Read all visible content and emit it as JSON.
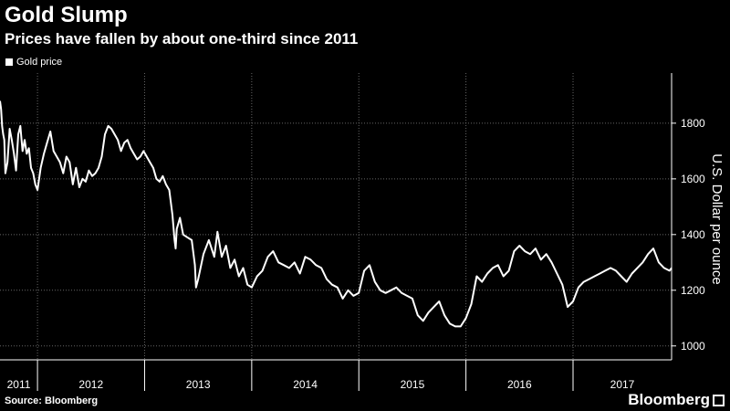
{
  "chart_data": {
    "type": "line",
    "title": "Gold Slump",
    "subtitle": "Prices have fallen by about one-third since 2011",
    "ylabel": "U.S. Dollar per ounce",
    "xlabel": "",
    "legend": {
      "position": "top-left",
      "entries": [
        "Gold price"
      ]
    },
    "ylim": [
      950,
      1980
    ],
    "yticks": [
      1000,
      1200,
      1400,
      1600,
      1800
    ],
    "grid": true,
    "x_categories": [
      "2011",
      "2012",
      "2013",
      "2014",
      "2015",
      "2016",
      "2017"
    ],
    "x_range": [
      2011.65,
      2017.92
    ],
    "series": [
      {
        "name": "Gold price",
        "x": [
          2011.65,
          2011.66,
          2011.67,
          2011.68,
          2011.69,
          2011.7,
          2011.72,
          2011.74,
          2011.76,
          2011.78,
          2011.8,
          2011.82,
          2011.84,
          2011.86,
          2011.88,
          2011.9,
          2011.92,
          2011.94,
          2011.96,
          2011.98,
          2012.0,
          2012.03,
          2012.06,
          2012.09,
          2012.12,
          2012.15,
          2012.18,
          2012.21,
          2012.24,
          2012.27,
          2012.3,
          2012.33,
          2012.36,
          2012.39,
          2012.42,
          2012.45,
          2012.48,
          2012.51,
          2012.54,
          2012.57,
          2012.6,
          2012.63,
          2012.66,
          2012.69,
          2012.72,
          2012.75,
          2012.78,
          2012.81,
          2012.84,
          2012.87,
          2012.9,
          2012.93,
          2012.96,
          2012.99,
          2013.02,
          2013.05,
          2013.08,
          2013.11,
          2013.14,
          2013.17,
          2013.2,
          2013.23,
          2013.26,
          2013.28,
          2013.29,
          2013.3,
          2013.33,
          2013.36,
          2013.4,
          2013.44,
          2013.47,
          2013.48,
          2013.5,
          2013.55,
          2013.6,
          2013.65,
          2013.68,
          2013.72,
          2013.76,
          2013.8,
          2013.84,
          2013.88,
          2013.92,
          2013.96,
          2014.0,
          2014.05,
          2014.1,
          2014.15,
          2014.2,
          2014.25,
          2014.3,
          2014.35,
          2014.4,
          2014.45,
          2014.5,
          2014.55,
          2014.6,
          2014.65,
          2014.7,
          2014.75,
          2014.8,
          2014.85,
          2014.9,
          2014.95,
          2015.0,
          2015.05,
          2015.1,
          2015.15,
          2015.2,
          2015.25,
          2015.3,
          2015.35,
          2015.4,
          2015.45,
          2015.5,
          2015.55,
          2015.6,
          2015.65,
          2015.7,
          2015.75,
          2015.8,
          2015.85,
          2015.9,
          2015.95,
          2016.0,
          2016.05,
          2016.1,
          2016.15,
          2016.2,
          2016.25,
          2016.3,
          2016.35,
          2016.4,
          2016.45,
          2016.5,
          2016.55,
          2016.6,
          2016.65,
          2016.7,
          2016.75,
          2016.8,
          2016.85,
          2016.9,
          2016.95,
          2017.0,
          2017.05,
          2017.1,
          2017.15,
          2017.2,
          2017.25,
          2017.3,
          2017.35,
          2017.4,
          2017.45,
          2017.5,
          2017.55,
          2017.6,
          2017.65,
          2017.7,
          2017.75,
          2017.8,
          2017.85,
          2017.9,
          2017.92
        ],
        "values": [
          1880,
          1850,
          1790,
          1760,
          1740,
          1620,
          1660,
          1780,
          1740,
          1690,
          1630,
          1760,
          1790,
          1700,
          1740,
          1690,
          1710,
          1640,
          1620,
          1580,
          1560,
          1640,
          1690,
          1730,
          1770,
          1700,
          1680,
          1660,
          1620,
          1680,
          1660,
          1580,
          1640,
          1570,
          1600,
          1590,
          1630,
          1610,
          1620,
          1640,
          1680,
          1760,
          1790,
          1780,
          1760,
          1740,
          1700,
          1730,
          1740,
          1710,
          1690,
          1670,
          1680,
          1700,
          1680,
          1660,
          1640,
          1600,
          1590,
          1610,
          1580,
          1560,
          1470,
          1380,
          1350,
          1420,
          1460,
          1400,
          1390,
          1380,
          1290,
          1210,
          1240,
          1330,
          1380,
          1320,
          1410,
          1320,
          1360,
          1280,
          1310,
          1250,
          1280,
          1220,
          1210,
          1250,
          1270,
          1320,
          1340,
          1300,
          1290,
          1280,
          1300,
          1260,
          1320,
          1310,
          1290,
          1280,
          1240,
          1220,
          1210,
          1170,
          1200,
          1180,
          1190,
          1270,
          1290,
          1230,
          1200,
          1190,
          1200,
          1210,
          1190,
          1180,
          1170,
          1110,
          1090,
          1120,
          1140,
          1160,
          1110,
          1080,
          1070,
          1070,
          1100,
          1150,
          1250,
          1230,
          1260,
          1280,
          1290,
          1250,
          1270,
          1340,
          1360,
          1340,
          1330,
          1350,
          1310,
          1330,
          1300,
          1260,
          1220,
          1140,
          1160,
          1210,
          1230,
          1240,
          1250,
          1260,
          1270,
          1280,
          1270,
          1250,
          1230,
          1260,
          1280,
          1300,
          1330,
          1350,
          1300,
          1280,
          1270,
          1280
        ]
      }
    ]
  },
  "source": "Source: Bloomberg",
  "brand": "Bloomberg",
  "colors": {
    "background": "#000000",
    "line": "#ffffff",
    "grid": "#666666"
  }
}
